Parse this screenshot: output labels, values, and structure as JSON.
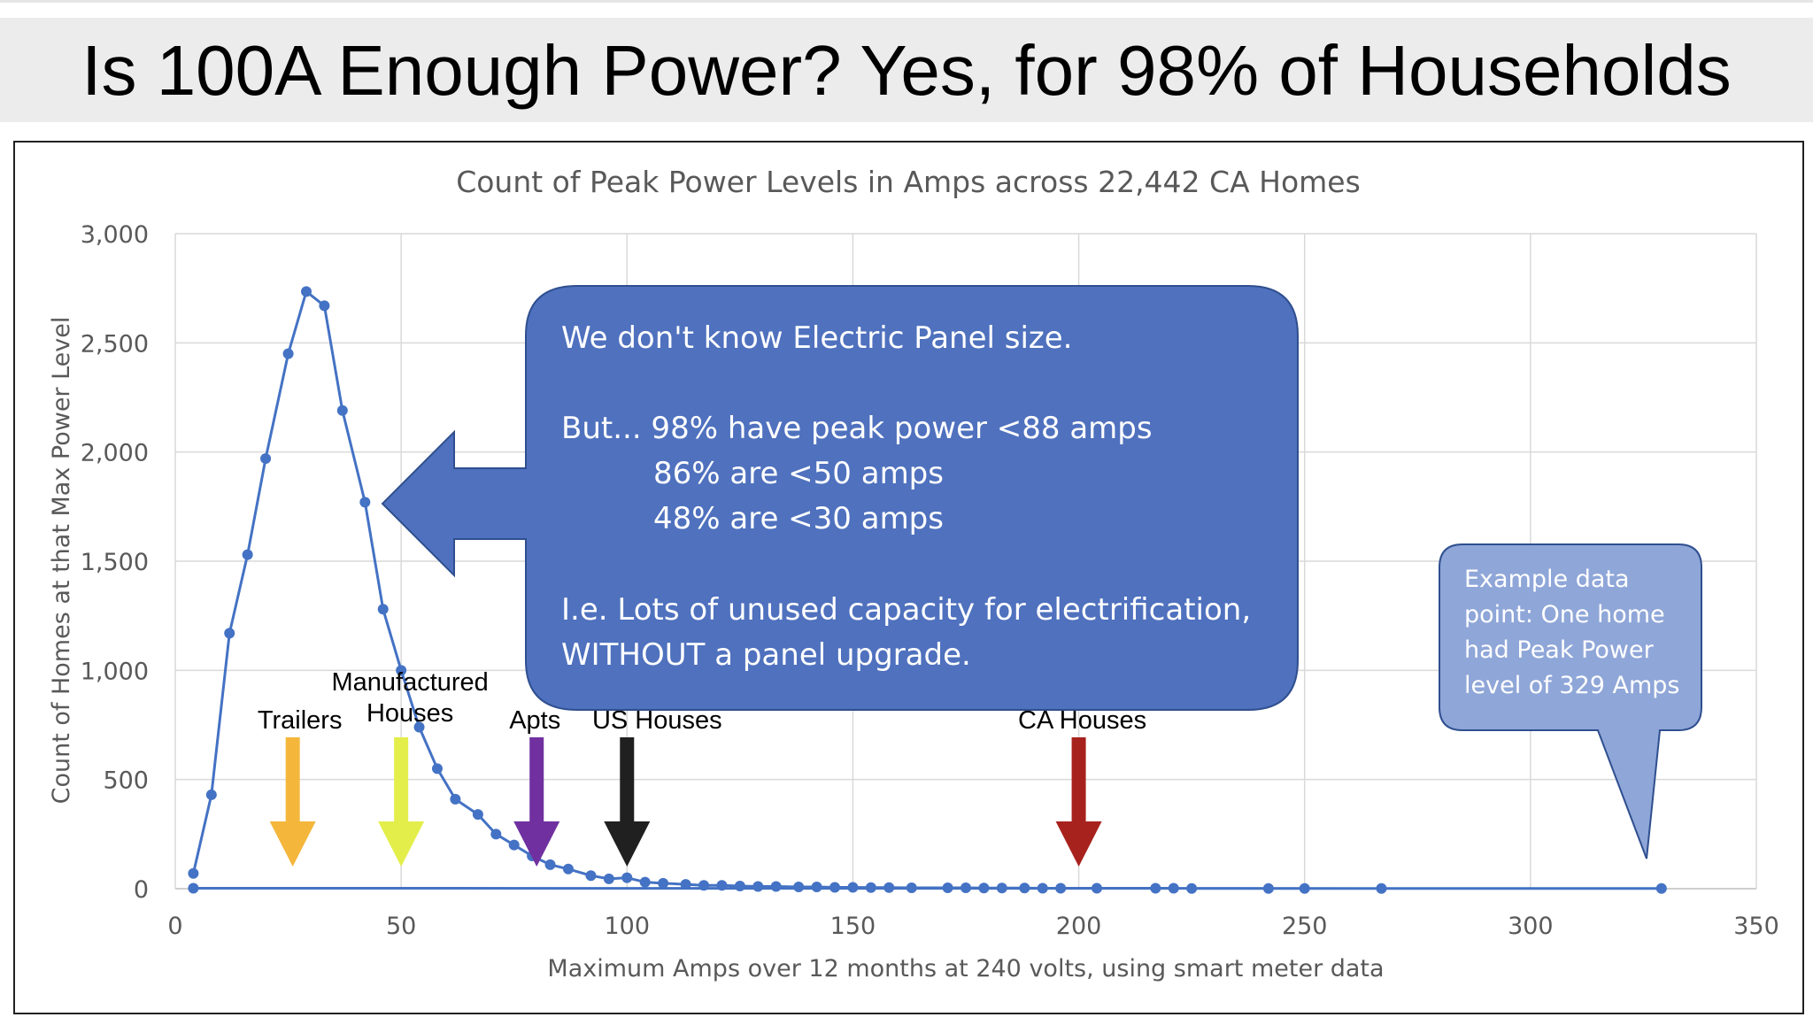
{
  "page_title": "Is 100A Enough Power? Yes, for 98% of Households",
  "chart_data": {
    "type": "line",
    "title": "Count of Peak Power Levels in Amps across 22,442 CA Homes",
    "xlabel": "Maximum Amps over 12 months at 240 volts, using smart meter data",
    "ylabel": "Count of Homes at that Max Power Level",
    "xlim": [
      0,
      350
    ],
    "ylim": [
      0,
      3000
    ],
    "x_ticks": [
      0,
      50,
      100,
      150,
      200,
      250,
      300,
      350
    ],
    "y_ticks": [
      0,
      500,
      1000,
      1500,
      2000,
      2500,
      3000
    ],
    "x_tick_labels": [
      "0",
      "50",
      "100",
      "150",
      "200",
      "250",
      "300",
      "350"
    ],
    "y_tick_labels": [
      "0",
      "500",
      "1,000",
      "1,500",
      "2,000",
      "2,500",
      "3,000"
    ],
    "grid": true,
    "series_color": "#4472C4",
    "x": [
      4,
      8,
      12,
      16,
      20,
      25,
      29,
      33,
      37,
      42,
      46,
      50,
      54,
      58,
      62,
      67,
      71,
      75,
      79,
      83,
      87,
      92,
      96,
      100,
      104,
      108,
      113,
      117,
      121,
      125,
      129,
      133,
      138,
      142,
      146,
      150,
      154,
      158,
      163,
      171,
      175,
      179,
      183,
      188,
      192,
      196,
      204,
      217,
      221,
      225,
      242,
      250,
      267,
      329,
      4
    ],
    "y": [
      70,
      430,
      1170,
      1530,
      1970,
      2450,
      2735,
      2670,
      2190,
      1770,
      1280,
      1000,
      740,
      550,
      410,
      340,
      250,
      200,
      150,
      110,
      90,
      60,
      45,
      50,
      30,
      25,
      20,
      15,
      15,
      12,
      10,
      10,
      8,
      8,
      6,
      6,
      5,
      5,
      4,
      4,
      4,
      3,
      3,
      3,
      2,
      2,
      2,
      2,
      2,
      1,
      1,
      1,
      1,
      1,
      2
    ]
  },
  "callout_main": {
    "line1": "We don't know Electric Panel size.",
    "line2": "But... 98% have peak power <88 amps",
    "line3": "86% are <50 amps",
    "line4": "48% are <30 amps",
    "line5": "I.e. Lots of unused capacity for electrification,",
    "line6": "WITHOUT a panel upgrade."
  },
  "callout_example": {
    "line1": "Example data",
    "line2": "point: One home",
    "line3": "had Peak Power",
    "line4": "level of 329 Amps"
  },
  "markers": [
    {
      "label": "Trailers",
      "x": 26,
      "color": "#F4B73C"
    },
    {
      "label_line1": "Manufactured",
      "label_line2": "Houses",
      "x": 50,
      "color": "#E3EE4A"
    },
    {
      "label": "Apts",
      "x": 80,
      "color": "#7030A0"
    },
    {
      "label": "US Houses",
      "x": 100,
      "color": "#202020"
    },
    {
      "label": "CA Houses",
      "x": 200,
      "color": "#A8221D"
    }
  ],
  "colors": {
    "callout_fill": "#4F71BE",
    "callout_stroke": "#2F4F8F",
    "example_fill": "#8FA6D8",
    "example_stroke": "#2F4F8F",
    "grid": "#D9D9D9",
    "axis_text": "#595959"
  }
}
